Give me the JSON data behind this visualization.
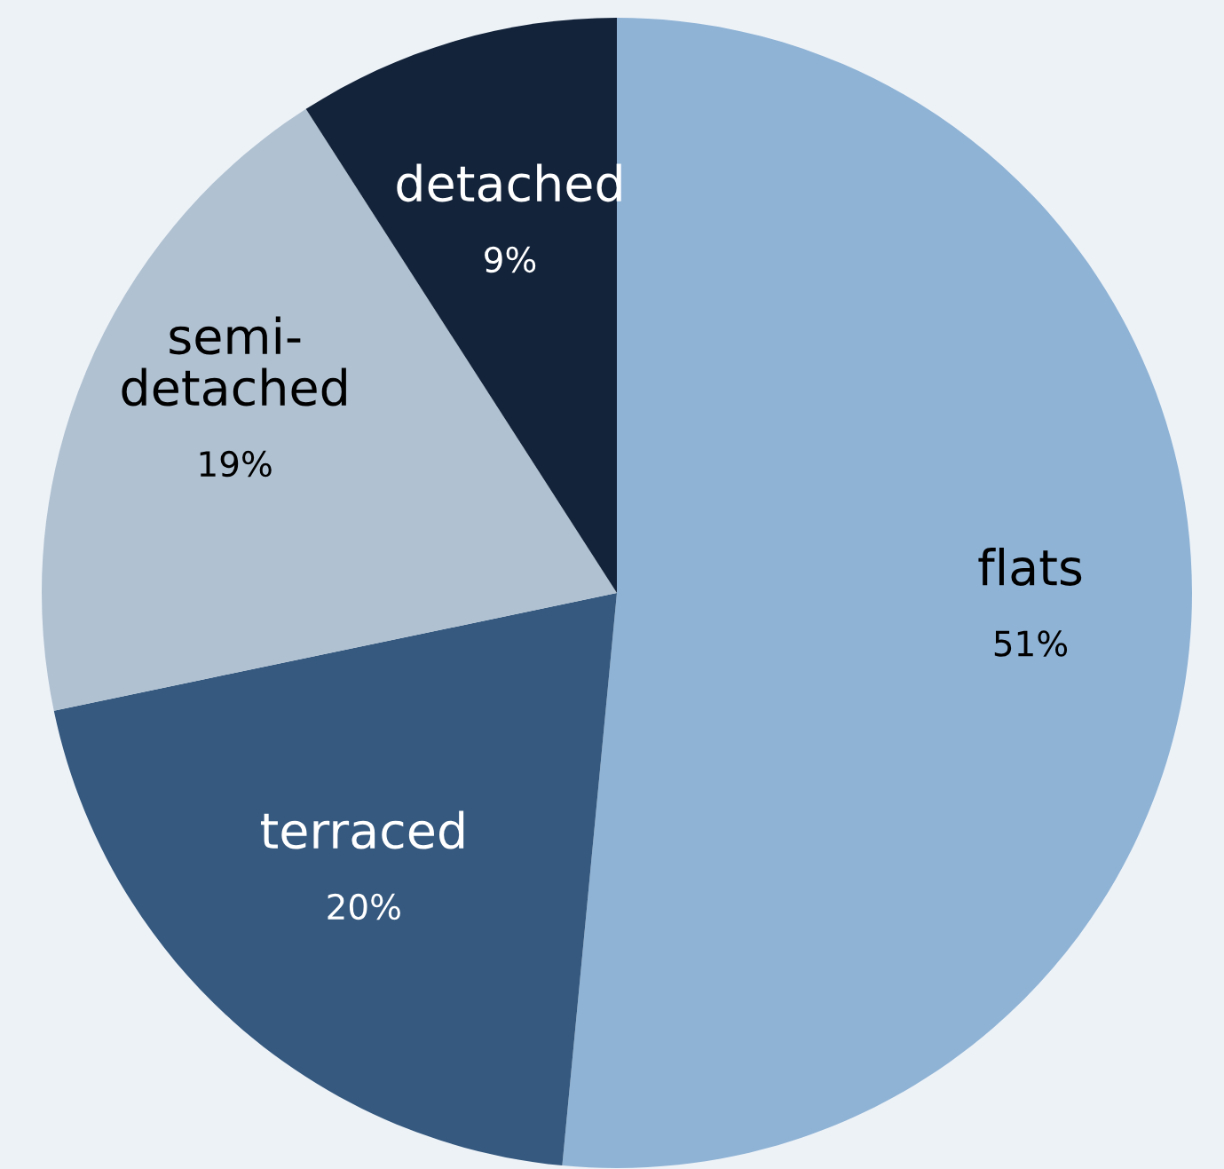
{
  "chart_data": {
    "type": "pie",
    "categories": [
      "flats",
      "terraced",
      "semi-\ndetached",
      "detached"
    ],
    "values": [
      51,
      20,
      19,
      9
    ],
    "colors": [
      "#8fb3d5",
      "#35597f",
      "#b0c1d1",
      "#13233a"
    ],
    "value_labels": [
      "51%",
      "20%",
      "19%",
      "9%"
    ]
  }
}
